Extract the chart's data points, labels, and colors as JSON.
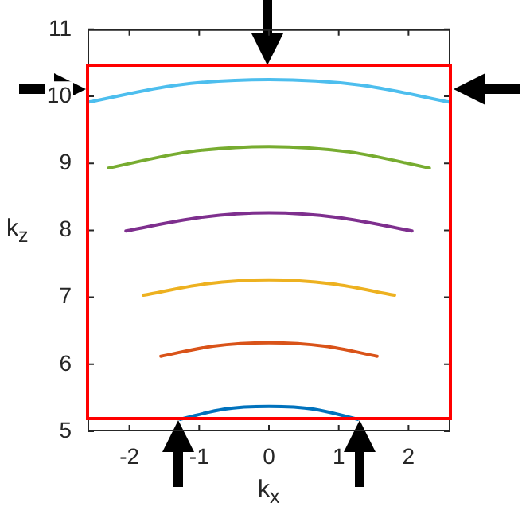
{
  "chart_data": {
    "type": "line",
    "xlabel": "k$_{x}$",
    "ylabel": "k$_{z}$",
    "xlim": [
      -2.6,
      2.6
    ],
    "ylim": [
      5,
      11
    ],
    "xticks": [
      -2,
      -1,
      0,
      1,
      2
    ],
    "yticks": [
      5,
      6,
      7,
      8,
      9,
      10,
      11
    ],
    "grid": false,
    "legend": false,
    "marker": "none",
    "line_style": "solid",
    "series": [
      {
        "color": "#0072bd",
        "x": [
          -1.27,
          -0.65,
          0,
          0.65,
          1.27
        ],
        "values": [
          5.18,
          5.33,
          5.37,
          5.33,
          5.18
        ]
      },
      {
        "color": "#d95319",
        "x": [
          -1.55,
          -0.8,
          0,
          0.8,
          1.55
        ],
        "values": [
          6.12,
          6.27,
          6.32,
          6.27,
          6.12
        ]
      },
      {
        "color": "#edb120",
        "x": [
          -1.8,
          -0.9,
          0,
          0.9,
          1.8
        ],
        "values": [
          7.03,
          7.2,
          7.26,
          7.2,
          7.03
        ]
      },
      {
        "color": "#7e2f8e",
        "x": [
          -2.05,
          -1.0,
          0,
          1.0,
          2.05
        ],
        "values": [
          7.99,
          8.19,
          8.26,
          8.19,
          7.99
        ]
      },
      {
        "color": "#77ac30",
        "x": [
          -2.3,
          -1.15,
          0,
          1.15,
          2.3
        ],
        "values": [
          8.93,
          9.17,
          9.25,
          9.17,
          8.93
        ]
      },
      {
        "color": "#4dbeee",
        "x": [
          -2.6,
          -1.3,
          0,
          1.3,
          2.6
        ],
        "values": [
          9.91,
          10.17,
          10.25,
          10.17,
          9.91
        ]
      }
    ]
  }
}
